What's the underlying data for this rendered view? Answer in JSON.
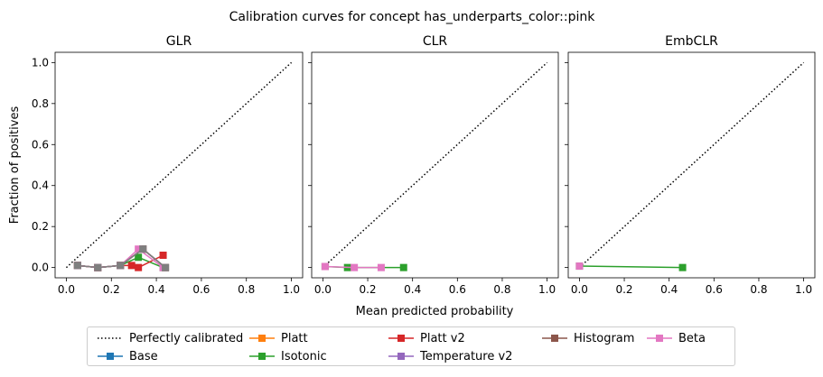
{
  "chart_data": {
    "type": "line",
    "suptitle": "Calibration curves for concept has_underparts_color::pink",
    "xlabel": "Mean predicted probability",
    "ylabel": "Fraction of positives",
    "xlim": [
      -0.05,
      1.05
    ],
    "ylim": [
      -0.05,
      1.05
    ],
    "xticks": [
      "0.0",
      "0.2",
      "0.4",
      "0.6",
      "0.8",
      "1.0"
    ],
    "yticks": [
      "0.0",
      "0.2",
      "0.4",
      "0.6",
      "0.8",
      "1.0"
    ],
    "grid": false,
    "legend_position": "bottom-center",
    "reference": {
      "name": "Perfectly calibrated",
      "x": [
        0,
        1
      ],
      "y": [
        0,
        1
      ]
    },
    "subplots": [
      {
        "title": "GLR",
        "series": [
          {
            "name": "Base",
            "color": "#1f77b4",
            "x": [
              0.05,
              0.14,
              0.24,
              0.34,
              0.44
            ],
            "y": [
              0.01,
              0.0,
              0.01,
              0.09,
              0.0
            ]
          },
          {
            "name": "Platt",
            "color": "#ff7f0e",
            "x": [
              0.05,
              0.14,
              0.24,
              0.34,
              0.44
            ],
            "y": [
              0.01,
              0.0,
              0.01,
              0.09,
              0.0
            ]
          },
          {
            "name": "Isotonic",
            "color": "#2ca02c",
            "x": [
              0.05,
              0.14,
              0.24,
              0.32,
              0.43
            ],
            "y": [
              0.01,
              0.0,
              0.01,
              0.05,
              0.0
            ]
          },
          {
            "name": "Platt v2",
            "color": "#d62728",
            "x": [
              0.05,
              0.14,
              0.24,
              0.29,
              0.32,
              0.43
            ],
            "y": [
              0.01,
              0.0,
              0.01,
              0.01,
              0.0,
              0.06
            ]
          },
          {
            "name": "Temperature v2",
            "color": "#9467bd",
            "x": [
              0.05,
              0.14,
              0.24,
              0.34,
              0.44
            ],
            "y": [
              0.01,
              0.0,
              0.01,
              0.09,
              0.0
            ]
          },
          {
            "name": "Histogram",
            "color": "#8c564b",
            "x": [
              0.05,
              0.14,
              0.24,
              0.34,
              0.44
            ],
            "y": [
              0.01,
              0.0,
              0.01,
              0.09,
              0.0
            ]
          },
          {
            "name": "Beta",
            "color": "#e377c2",
            "x": [
              0.05,
              0.14,
              0.24,
              0.32,
              0.43
            ],
            "y": [
              0.01,
              0.0,
              0.01,
              0.09,
              0.0
            ]
          },
          {
            "name": "",
            "color": "#7f7f7f",
            "x": [
              0.05,
              0.14,
              0.24,
              0.34,
              0.44
            ],
            "y": [
              0.01,
              0.0,
              0.01,
              0.09,
              0.0
            ]
          }
        ]
      },
      {
        "title": "CLR",
        "series": [
          {
            "name": "Isotonic",
            "color": "#2ca02c",
            "x": [
              0.01,
              0.11,
              0.36
            ],
            "y": [
              0.005,
              0.0,
              0.0
            ]
          },
          {
            "name": "Beta",
            "color": "#e377c2",
            "x": [
              0.01,
              0.14,
              0.26
            ],
            "y": [
              0.005,
              0.0,
              0.0
            ]
          }
        ]
      },
      {
        "title": "EmbCLR",
        "series": [
          {
            "name": "Isotonic",
            "color": "#2ca02c",
            "x": [
              0.0,
              0.46
            ],
            "y": [
              0.007,
              0.0
            ]
          },
          {
            "name": "Beta",
            "color": "#e377c2",
            "x": [
              0.0
            ],
            "y": [
              0.007
            ]
          }
        ]
      }
    ],
    "legend": [
      {
        "label": "Perfectly calibrated",
        "color": "#000000",
        "style": "dotted"
      },
      {
        "label": "Base",
        "color": "#1f77b4",
        "style": "line-square"
      },
      {
        "label": "Platt",
        "color": "#ff7f0e",
        "style": "line-square"
      },
      {
        "label": "Isotonic",
        "color": "#2ca02c",
        "style": "line-square"
      },
      {
        "label": "Platt v2",
        "color": "#d62728",
        "style": "line-square"
      },
      {
        "label": "Temperature v2",
        "color": "#9467bd",
        "style": "line-square"
      },
      {
        "label": "Histogram",
        "color": "#8c564b",
        "style": "line-square"
      },
      {
        "label": "Beta",
        "color": "#e377c2",
        "style": "line-square"
      }
    ]
  }
}
